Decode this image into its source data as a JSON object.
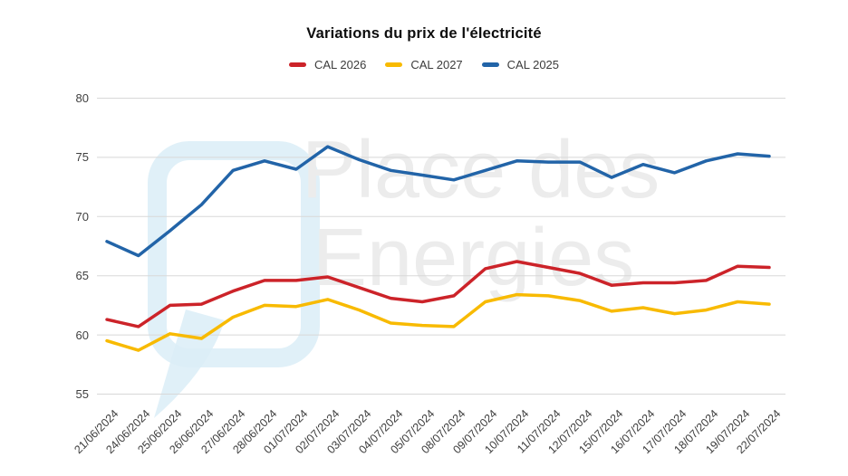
{
  "title": "Variations du prix de l'électricité",
  "watermark": {
    "line1": "Place des",
    "line2": "Energies"
  },
  "legend": [
    {
      "label": "CAL 2026",
      "color": "#cc2329"
    },
    {
      "label": "CAL 2027",
      "color": "#f8ba00"
    },
    {
      "label": "CAL 2025",
      "color": "#2264a8"
    }
  ],
  "chart_data": {
    "type": "line",
    "title": "Variations du prix de l'électricité",
    "x": [
      "21/06/2024",
      "24/06/2024",
      "25/06/2024",
      "26/06/2024",
      "27/06/2024",
      "28/06/2024",
      "01/07/2024",
      "02/07/2024",
      "03/07/2024",
      "04/07/2024",
      "05/07/2024",
      "08/07/2024",
      "09/07/2024",
      "10/07/2024",
      "11/07/2024",
      "12/07/2024",
      "15/07/2024",
      "16/07/2024",
      "17/07/2024",
      "18/07/2024",
      "19/07/2024",
      "22/07/2024"
    ],
    "series": [
      {
        "name": "CAL 2026",
        "color": "#cc2329",
        "values": [
          61.3,
          60.7,
          62.5,
          62.6,
          63.7,
          64.6,
          64.6,
          64.9,
          64.0,
          63.1,
          62.8,
          63.3,
          65.6,
          66.2,
          65.7,
          65.2,
          64.2,
          64.4,
          64.4,
          64.6,
          65.8,
          65.7
        ]
      },
      {
        "name": "CAL 2027",
        "color": "#f8ba00",
        "values": [
          59.5,
          58.7,
          60.1,
          59.7,
          61.5,
          62.5,
          62.4,
          63.0,
          62.1,
          61.0,
          60.8,
          60.7,
          62.8,
          63.4,
          63.3,
          62.9,
          62.0,
          62.3,
          61.8,
          62.1,
          62.8,
          62.6
        ]
      },
      {
        "name": "CAL 2025",
        "color": "#2264a8",
        "values": [
          67.9,
          66.7,
          68.8,
          71.0,
          73.9,
          74.7,
          74.0,
          75.9,
          74.8,
          73.9,
          73.5,
          73.1,
          73.9,
          74.7,
          74.6,
          74.6,
          73.3,
          74.4,
          73.7,
          74.7,
          75.3,
          75.1
        ]
      }
    ],
    "ylim": [
      55,
      80
    ],
    "yticks": [
      55,
      60,
      65,
      70,
      75,
      80
    ],
    "xlabel": "",
    "ylabel": "",
    "grid": true,
    "gridline_color": "#d8d8d8",
    "legend_position": "top"
  }
}
